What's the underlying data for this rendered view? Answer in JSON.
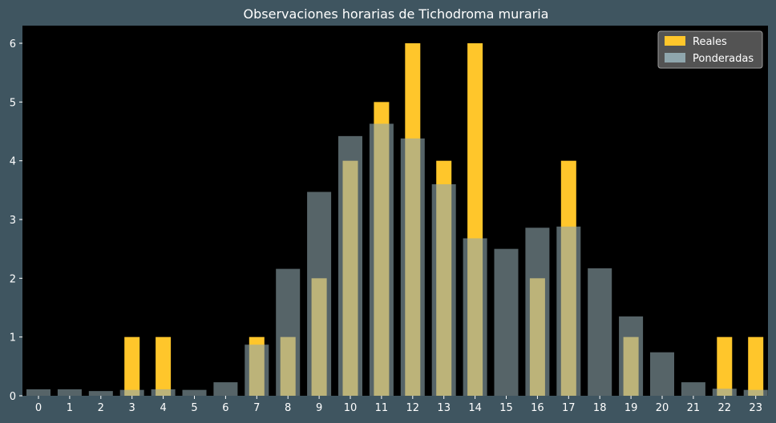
{
  "chart_data": {
    "type": "bar",
    "title": "Observaciones horarias de Tichodroma muraria",
    "xlabel": "",
    "ylabel": "",
    "categories": [
      "0",
      "1",
      "2",
      "3",
      "4",
      "5",
      "6",
      "7",
      "8",
      "9",
      "10",
      "11",
      "12",
      "13",
      "14",
      "15",
      "16",
      "17",
      "18",
      "19",
      "20",
      "21",
      "22",
      "23"
    ],
    "series": [
      {
        "name": "Reales",
        "color": "#ffc62b",
        "values": [
          0,
          0,
          0,
          1,
          1,
          0,
          0,
          1,
          1,
          2,
          4,
          5,
          6,
          4,
          6,
          0,
          2,
          4,
          0,
          1,
          0,
          0,
          1,
          1
        ]
      },
      {
        "name": "Ponderadas",
        "color": "#8fa6ad",
        "values": [
          0.11,
          0.11,
          0.08,
          0.1,
          0.11,
          0.1,
          0.23,
          0.87,
          2.16,
          3.47,
          4.42,
          4.63,
          4.38,
          3.6,
          2.68,
          2.5,
          2.86,
          2.88,
          2.17,
          1.35,
          0.74,
          0.23,
          0.12,
          0.1
        ]
      }
    ],
    "yticks": [
      0,
      1,
      2,
      3,
      4,
      5,
      6
    ],
    "ylim": [
      0,
      6.3
    ],
    "grid": false,
    "legend": "top-right"
  },
  "colors": {
    "figure_background": "#3f5560",
    "plot_background": "#000000",
    "text": "#ffffff",
    "legend_background": "#5a5a5a"
  }
}
